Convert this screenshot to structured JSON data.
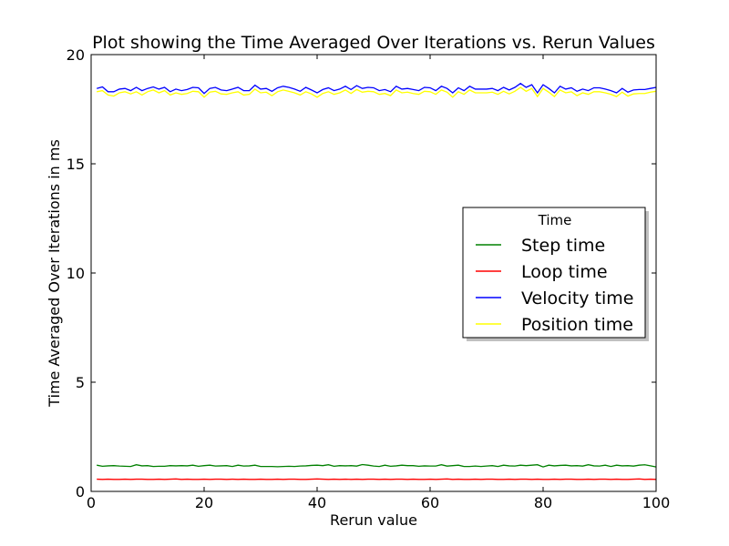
{
  "chart_data": {
    "type": "line",
    "title": "Plot showing the Time Averaged Over Iterations vs. Rerun Values",
    "xlabel": "Rerun value",
    "ylabel": "Time Averaged Over Iterations in ms",
    "xlim": [
      0,
      100
    ],
    "ylim": [
      0,
      20
    ],
    "xticks": [
      0,
      20,
      40,
      60,
      80,
      100
    ],
    "yticks": [
      0,
      5,
      10,
      15,
      20
    ],
    "grid": false,
    "legend": {
      "title": "Time",
      "placement": "right"
    },
    "x": [
      1,
      2,
      3,
      4,
      5,
      6,
      7,
      8,
      9,
      10,
      11,
      12,
      13,
      14,
      15,
      16,
      17,
      18,
      19,
      20,
      21,
      22,
      23,
      24,
      25,
      26,
      27,
      28,
      29,
      30,
      31,
      32,
      33,
      34,
      35,
      36,
      37,
      38,
      39,
      40,
      41,
      42,
      43,
      44,
      45,
      46,
      47,
      48,
      49,
      50,
      51,
      52,
      53,
      54,
      55,
      56,
      57,
      58,
      59,
      60,
      61,
      62,
      63,
      64,
      65,
      66,
      67,
      68,
      69,
      70,
      71,
      72,
      73,
      74,
      75,
      76,
      77,
      78,
      79,
      80,
      81,
      82,
      83,
      84,
      85,
      86,
      87,
      88,
      89,
      90,
      91,
      92,
      93,
      94,
      95,
      96,
      97,
      98,
      99,
      100
    ],
    "series": [
      {
        "name": "Step time",
        "color": "#008000",
        "values": [
          1.2,
          1.15,
          1.17,
          1.18,
          1.16,
          1.15,
          1.14,
          1.22,
          1.17,
          1.18,
          1.14,
          1.15,
          1.15,
          1.18,
          1.17,
          1.18,
          1.17,
          1.2,
          1.15,
          1.18,
          1.2,
          1.16,
          1.17,
          1.18,
          1.14,
          1.2,
          1.16,
          1.17,
          1.2,
          1.14,
          1.14,
          1.14,
          1.13,
          1.14,
          1.15,
          1.14,
          1.16,
          1.17,
          1.19,
          1.2,
          1.18,
          1.22,
          1.15,
          1.18,
          1.17,
          1.18,
          1.16,
          1.23,
          1.2,
          1.16,
          1.14,
          1.2,
          1.15,
          1.17,
          1.2,
          1.18,
          1.18,
          1.15,
          1.17,
          1.16,
          1.16,
          1.22,
          1.16,
          1.18,
          1.2,
          1.14,
          1.14,
          1.16,
          1.14,
          1.16,
          1.18,
          1.14,
          1.2,
          1.17,
          1.16,
          1.2,
          1.18,
          1.2,
          1.22,
          1.12,
          1.2,
          1.17,
          1.19,
          1.2,
          1.17,
          1.18,
          1.16,
          1.22,
          1.17,
          1.16,
          1.2,
          1.14,
          1.2,
          1.17,
          1.18,
          1.16,
          1.2,
          1.22,
          1.17,
          1.12
        ]
      },
      {
        "name": "Loop time",
        "color": "#ff0000",
        "values": [
          0.56,
          0.55,
          0.56,
          0.55,
          0.55,
          0.56,
          0.55,
          0.56,
          0.56,
          0.55,
          0.55,
          0.56,
          0.55,
          0.56,
          0.57,
          0.55,
          0.56,
          0.55,
          0.55,
          0.56,
          0.55,
          0.56,
          0.56,
          0.55,
          0.56,
          0.55,
          0.56,
          0.55,
          0.55,
          0.56,
          0.55,
          0.55,
          0.56,
          0.55,
          0.56,
          0.56,
          0.55,
          0.55,
          0.56,
          0.57,
          0.56,
          0.55,
          0.56,
          0.55,
          0.56,
          0.55,
          0.56,
          0.55,
          0.56,
          0.56,
          0.55,
          0.56,
          0.55,
          0.56,
          0.56,
          0.55,
          0.56,
          0.55,
          0.55,
          0.56,
          0.55,
          0.56,
          0.57,
          0.55,
          0.56,
          0.55,
          0.55,
          0.56,
          0.55,
          0.56,
          0.56,
          0.55,
          0.55,
          0.56,
          0.55,
          0.56,
          0.56,
          0.55,
          0.56,
          0.55,
          0.55,
          0.56,
          0.55,
          0.56,
          0.56,
          0.55,
          0.55,
          0.56,
          0.55,
          0.56,
          0.56,
          0.55,
          0.56,
          0.55,
          0.55,
          0.56,
          0.57,
          0.55,
          0.56,
          0.55
        ]
      },
      {
        "name": "Velocity time",
        "color": "#0000ff",
        "values": [
          18.45,
          18.52,
          18.3,
          18.3,
          18.42,
          18.45,
          18.35,
          18.5,
          18.35,
          18.45,
          18.52,
          18.42,
          18.5,
          18.3,
          18.42,
          18.35,
          18.4,
          18.5,
          18.48,
          18.22,
          18.45,
          18.5,
          18.38,
          18.35,
          18.42,
          18.5,
          18.35,
          18.35,
          18.6,
          18.42,
          18.45,
          18.32,
          18.48,
          18.55,
          18.5,
          18.42,
          18.32,
          18.5,
          18.38,
          18.25,
          18.4,
          18.48,
          18.35,
          18.42,
          18.55,
          18.4,
          18.58,
          18.45,
          18.5,
          18.48,
          18.35,
          18.4,
          18.3,
          18.55,
          18.42,
          18.45,
          18.4,
          18.35,
          18.5,
          18.48,
          18.35,
          18.55,
          18.45,
          18.25,
          18.48,
          18.35,
          18.55,
          18.42,
          18.42,
          18.42,
          18.45,
          18.35,
          18.5,
          18.38,
          18.5,
          18.68,
          18.5,
          18.62,
          18.25,
          18.62,
          18.45,
          18.25,
          18.55,
          18.42,
          18.48,
          18.32,
          18.42,
          18.35,
          18.48,
          18.48,
          18.42,
          18.35,
          18.25,
          18.45,
          18.28,
          18.38,
          18.4,
          18.4,
          18.45,
          18.5
        ]
      },
      {
        "name": "Position time",
        "color": "#ffff00",
        "values": [
          18.3,
          18.35,
          18.15,
          18.1,
          18.25,
          18.3,
          18.2,
          18.3,
          18.15,
          18.3,
          18.38,
          18.25,
          18.35,
          18.15,
          18.25,
          18.18,
          18.22,
          18.32,
          18.3,
          18.05,
          18.28,
          18.32,
          18.2,
          18.18,
          18.25,
          18.3,
          18.15,
          18.18,
          18.42,
          18.25,
          18.28,
          18.12,
          18.3,
          18.38,
          18.32,
          18.25,
          18.15,
          18.3,
          18.2,
          18.05,
          18.22,
          18.3,
          18.18,
          18.25,
          18.38,
          18.22,
          18.4,
          18.28,
          18.32,
          18.3,
          18.18,
          18.22,
          18.12,
          18.38,
          18.25,
          18.28,
          18.22,
          18.18,
          18.32,
          18.3,
          18.18,
          18.38,
          18.28,
          18.05,
          18.3,
          18.18,
          18.38,
          18.25,
          18.25,
          18.25,
          18.28,
          18.18,
          18.32,
          18.2,
          18.32,
          18.5,
          18.32,
          18.45,
          18.08,
          18.45,
          18.28,
          18.08,
          18.38,
          18.25,
          18.3,
          18.12,
          18.25,
          18.18,
          18.3,
          18.3,
          18.25,
          18.18,
          18.08,
          18.28,
          18.1,
          18.2,
          18.22,
          18.22,
          18.28,
          18.32
        ]
      }
    ]
  }
}
